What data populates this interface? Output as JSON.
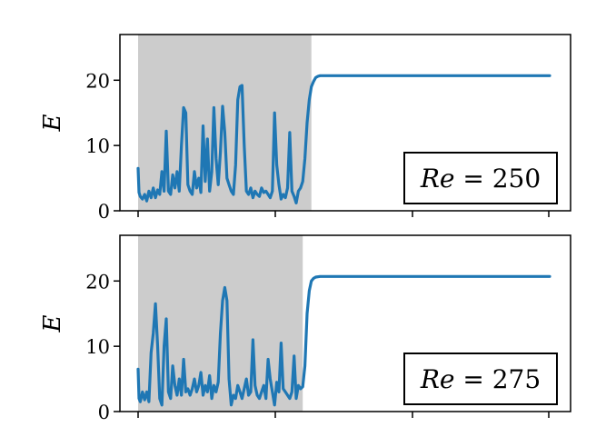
{
  "chart_data": [
    {
      "type": "line",
      "ylabel": "E",
      "annotation": "Re = 250",
      "annotation_parts": {
        "var": "Re",
        "op": "= ",
        "val": "250"
      },
      "xlim": [
        0,
        1
      ],
      "ylim": [
        0,
        27
      ],
      "yticks": [
        0,
        10,
        20
      ],
      "xticks": [
        0.05,
        0.38,
        0.71,
        1.04
      ],
      "shaded_region": [
        0.05,
        0.45
      ],
      "line_color": "#1f77b4",
      "shade_color": "#cccccc",
      "series": [
        {
          "x": [
            0.05,
            0.052,
            0.055,
            0.06,
            0.065,
            0.07,
            0.075,
            0.08,
            0.085,
            0.09,
            0.095,
            0.1,
            0.105,
            0.11,
            0.115,
            0.12,
            0.125,
            0.13,
            0.135,
            0.14,
            0.145,
            0.15,
            0.155,
            0.16,
            0.165,
            0.17,
            0.175,
            0.18,
            0.185,
            0.19,
            0.195,
            0.2,
            0.205,
            0.21,
            0.215,
            0.22,
            0.225,
            0.23,
            0.235,
            0.24,
            0.245,
            0.25,
            0.255,
            0.26,
            0.265,
            0.27,
            0.275,
            0.28,
            0.285,
            0.29,
            0.295,
            0.3,
            0.305,
            0.31,
            0.315,
            0.32,
            0.325,
            0.33,
            0.335,
            0.34,
            0.345,
            0.35,
            0.355,
            0.36,
            0.365,
            0.37,
            0.375,
            0.38,
            0.385,
            0.39,
            0.395,
            0.4,
            0.405,
            0.41,
            0.415,
            0.42,
            0.425,
            0.43,
            0.435,
            0.44,
            0.445,
            0.45,
            0.455,
            0.46,
            0.465,
            0.47,
            0.475,
            0.48,
            0.49,
            0.5,
            0.55,
            0.6,
            0.7,
            0.8,
            0.9,
            1.0
          ],
          "y": [
            6.5,
            2.8,
            2.2,
            1.8,
            2.5,
            1.5,
            3.0,
            2.0,
            3.5,
            2.0,
            3.2,
            2.5,
            6.0,
            3.0,
            12.2,
            3.0,
            2.5,
            5.5,
            3.5,
            6.0,
            3.0,
            10.0,
            15.8,
            15.0,
            4.0,
            3.0,
            2.5,
            6.0,
            3.5,
            5.0,
            2.8,
            13.0,
            4.5,
            11.0,
            3.0,
            6.0,
            15.8,
            8.0,
            4.0,
            9.0,
            16.0,
            12.0,
            5.0,
            4.0,
            3.0,
            2.5,
            7.0,
            17.0,
            19.0,
            19.2,
            10.0,
            3.0,
            2.5,
            3.5,
            2.0,
            3.0,
            2.5,
            2.2,
            3.5,
            2.8,
            3.0,
            2.5,
            2.0,
            3.0,
            15.0,
            7.0,
            4.0,
            1.8,
            2.5,
            2.0,
            3.5,
            12.0,
            3.0,
            2.2,
            1.2,
            3.0,
            3.5,
            4.5,
            8.0,
            13.5,
            17.0,
            19.0,
            19.8,
            20.4,
            20.6,
            20.7,
            20.7,
            20.7,
            20.7,
            20.7,
            20.7,
            20.7,
            20.7,
            20.7,
            20.7,
            20.7
          ]
        }
      ]
    },
    {
      "type": "line",
      "ylabel": "E",
      "annotation": "Re = 275",
      "annotation_parts": {
        "var": "Re",
        "op": "= ",
        "val": "275"
      },
      "xlim": [
        0,
        1
      ],
      "ylim": [
        0,
        27
      ],
      "yticks": [
        0,
        10,
        20
      ],
      "xticks": [
        0.05,
        0.38,
        0.71,
        1.04
      ],
      "shaded_region": [
        0.05,
        0.43
      ],
      "line_color": "#1f77b4",
      "shade_color": "#cccccc",
      "series": [
        {
          "x": [
            0.05,
            0.052,
            0.055,
            0.06,
            0.065,
            0.07,
            0.075,
            0.08,
            0.085,
            0.09,
            0.095,
            0.1,
            0.105,
            0.11,
            0.115,
            0.12,
            0.125,
            0.13,
            0.135,
            0.14,
            0.145,
            0.15,
            0.155,
            0.16,
            0.165,
            0.17,
            0.175,
            0.18,
            0.185,
            0.19,
            0.195,
            0.2,
            0.205,
            0.21,
            0.215,
            0.22,
            0.225,
            0.23,
            0.235,
            0.24,
            0.245,
            0.25,
            0.255,
            0.26,
            0.265,
            0.27,
            0.275,
            0.28,
            0.285,
            0.29,
            0.295,
            0.3,
            0.305,
            0.31,
            0.315,
            0.32,
            0.325,
            0.33,
            0.335,
            0.34,
            0.345,
            0.35,
            0.355,
            0.36,
            0.365,
            0.37,
            0.375,
            0.38,
            0.385,
            0.39,
            0.395,
            0.4,
            0.405,
            0.41,
            0.415,
            0.42,
            0.425,
            0.43,
            0.435,
            0.44,
            0.445,
            0.45,
            0.455,
            0.46,
            0.47,
            0.48,
            0.5,
            0.55,
            0.6,
            0.7,
            0.8,
            0.9,
            1.0
          ],
          "y": [
            6.5,
            2.0,
            1.5,
            3.0,
            1.8,
            3.0,
            1.5,
            9.0,
            12.0,
            16.5,
            10.0,
            2.0,
            1.0,
            10.0,
            14.2,
            3.0,
            2.0,
            7.0,
            4.0,
            2.5,
            5.0,
            2.5,
            8.0,
            3.0,
            3.5,
            2.5,
            3.5,
            5.0,
            3.0,
            4.0,
            6.0,
            2.5,
            4.0,
            3.0,
            5.5,
            2.0,
            4.0,
            3.0,
            4.5,
            12.0,
            17.0,
            19.0,
            17.0,
            5.0,
            1.0,
            2.5,
            2.0,
            4.0,
            3.0,
            2.0,
            3.5,
            5.0,
            2.5,
            3.0,
            11.0,
            4.0,
            2.5,
            2.0,
            3.0,
            4.0,
            2.0,
            8.0,
            5.0,
            3.0,
            1.0,
            4.5,
            3.0,
            10.5,
            3.5,
            3.0,
            2.5,
            2.0,
            3.0,
            8.5,
            2.0,
            4.0,
            3.5,
            3.8,
            7.0,
            15.0,
            18.5,
            20.0,
            20.4,
            20.6,
            20.7,
            20.7,
            20.7,
            20.7,
            20.7,
            20.7,
            20.7,
            20.7,
            20.7
          ]
        }
      ]
    }
  ]
}
